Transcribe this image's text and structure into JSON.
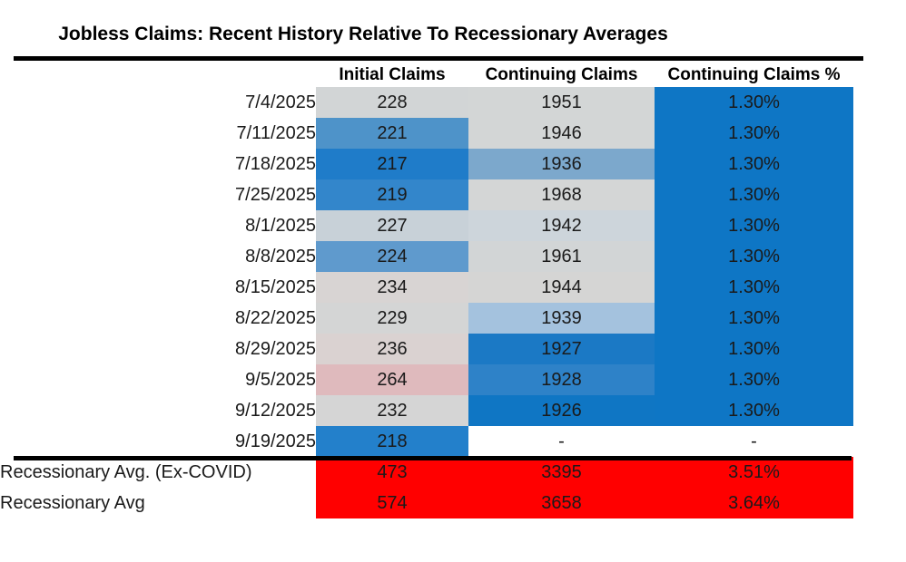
{
  "title": "Jobless Claims: Recent History Relative To Recessionary Averages",
  "table": {
    "columns": [
      "Initial Claims",
      "Continuing Claims",
      "Continuing Claims %"
    ],
    "rows": [
      {
        "date": "7/4/2025",
        "initial": "228",
        "initial_bg": "#D2D5D6",
        "continuing": "1951",
        "continuing_bg": "#D3D6D6",
        "pct": "1.30%",
        "pct_bg": "#0E76C5"
      },
      {
        "date": "7/11/2025",
        "initial": "221",
        "initial_bg": "#4E93C9",
        "continuing": "1946",
        "continuing_bg": "#D3D6D6",
        "pct": "1.30%",
        "pct_bg": "#0E76C5"
      },
      {
        "date": "7/18/2025",
        "initial": "217",
        "initial_bg": "#1F7CC9",
        "continuing": "1936",
        "continuing_bg": "#7CA8CC",
        "pct": "1.30%",
        "pct_bg": "#0E76C5"
      },
      {
        "date": "7/25/2025",
        "initial": "219",
        "initial_bg": "#3386CB",
        "continuing": "1968",
        "continuing_bg": "#D4D6D6",
        "pct": "1.30%",
        "pct_bg": "#0E76C5"
      },
      {
        "date": "8/1/2025",
        "initial": "227",
        "initial_bg": "#C8D1D8",
        "continuing": "1942",
        "continuing_bg": "#CDD5DB",
        "pct": "1.30%",
        "pct_bg": "#0E76C5"
      },
      {
        "date": "8/8/2025",
        "initial": "224",
        "initial_bg": "#5F9ACD",
        "continuing": "1961",
        "continuing_bg": "#D2D5D6",
        "pct": "1.30%",
        "pct_bg": "#0E76C5"
      },
      {
        "date": "8/15/2025",
        "initial": "234",
        "initial_bg": "#D8D4D3",
        "continuing": "1944",
        "continuing_bg": "#D5D5D4",
        "pct": "1.30%",
        "pct_bg": "#0E76C5"
      },
      {
        "date": "8/22/2025",
        "initial": "229",
        "initial_bg": "#D4D5D5",
        "continuing": "1939",
        "continuing_bg": "#A4C2DE",
        "pct": "1.30%",
        "pct_bg": "#0E76C5"
      },
      {
        "date": "8/29/2025",
        "initial": "236",
        "initial_bg": "#DAD2D1",
        "continuing": "1927",
        "continuing_bg": "#1B79C5",
        "pct": "1.30%",
        "pct_bg": "#0E76C5"
      },
      {
        "date": "9/5/2025",
        "initial": "264",
        "initial_bg": "#DFBABD",
        "continuing": "1928",
        "continuing_bg": "#2E82C8",
        "pct": "1.30%",
        "pct_bg": "#0E76C5"
      },
      {
        "date": "9/12/2025",
        "initial": "232",
        "initial_bg": "#D5D5D5",
        "continuing": "1926",
        "continuing_bg": "#0F76C4",
        "pct": "1.30%",
        "pct_bg": "#0E76C5"
      },
      {
        "date": "9/19/2025",
        "initial": "218",
        "initial_bg": "#2380CB",
        "continuing": "-",
        "continuing_bg": "#FFFFFF",
        "pct": "-",
        "pct_bg": "#FFFFFF"
      }
    ],
    "summary_rows": [
      {
        "label": "Recessionary Avg. (Ex-COVID)",
        "initial": "473",
        "continuing": "3395",
        "pct": "3.51%",
        "bg": "#FF0000"
      },
      {
        "label": "Recessionary Avg",
        "initial": "574",
        "continuing": "3658",
        "pct": "3.64%",
        "bg": "#FF0000"
      }
    ]
  },
  "colors": {
    "strong_blue": "#0E76C5",
    "neutral_gray": "#D3D6D6",
    "warm_pink": "#DFBABD",
    "recession_red": "#FF0000",
    "rule_black": "#000000"
  },
  "chart_data": {
    "type": "table",
    "title": "Jobless Claims: Recent History Relative To Recessionary Averages",
    "categories": [
      "7/4/2025",
      "7/11/2025",
      "7/18/2025",
      "7/25/2025",
      "8/1/2025",
      "8/8/2025",
      "8/15/2025",
      "8/22/2025",
      "8/29/2025",
      "9/5/2025",
      "9/12/2025",
      "9/19/2025",
      "Recessionary Avg. (Ex-COVID)",
      "Recessionary Avg"
    ],
    "series": [
      {
        "name": "Initial Claims",
        "values": [
          228,
          221,
          217,
          219,
          227,
          224,
          234,
          229,
          236,
          264,
          232,
          218,
          473,
          574
        ]
      },
      {
        "name": "Continuing Claims",
        "values": [
          1951,
          1946,
          1936,
          1968,
          1942,
          1961,
          1944,
          1939,
          1927,
          1928,
          1926,
          null,
          3395,
          3658
        ]
      },
      {
        "name": "Continuing Claims %",
        "values": [
          "1.30%",
          "1.30%",
          "1.30%",
          "1.30%",
          "1.30%",
          "1.30%",
          "1.30%",
          "1.30%",
          "1.30%",
          "1.30%",
          "1.30%",
          "-",
          "3.51%",
          "3.64%"
        ]
      }
    ],
    "layout_hints": "weekly rows shaded with blue-gray-red conditional color scale; recessionary average rows solid red; thick black rules under title and above averages"
  }
}
